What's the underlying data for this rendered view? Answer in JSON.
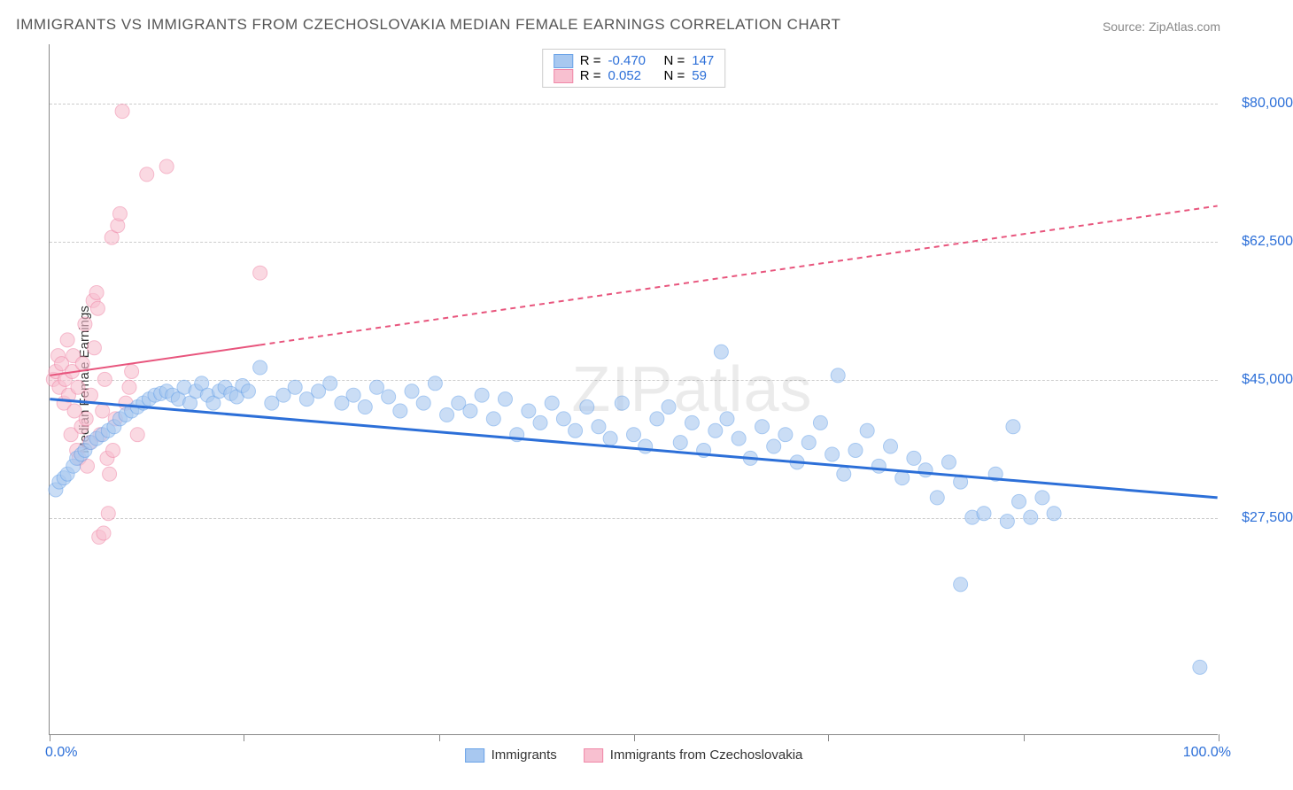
{
  "title": "IMMIGRANTS VS IMMIGRANTS FROM CZECHOSLOVAKIA MEDIAN FEMALE EARNINGS CORRELATION CHART",
  "source": "Source: ZipAtlas.com",
  "ylabel": "Median Female Earnings",
  "watermark": "ZIPatlas",
  "chart": {
    "type": "scatter",
    "xlim": [
      0,
      100
    ],
    "ylim": [
      0,
      87500
    ],
    "xaxis": {
      "min_label": "0.0%",
      "max_label": "100.0%",
      "tick_positions_pct": [
        0,
        16.6,
        33.3,
        50,
        66.6,
        83.3,
        100
      ]
    },
    "yticks": [
      {
        "value": 27500,
        "label": "$27,500"
      },
      {
        "value": 45000,
        "label": "$45,000"
      },
      {
        "value": 62500,
        "label": "$62,500"
      },
      {
        "value": 80000,
        "label": "$80,000"
      }
    ],
    "grid_color": "#cccccc",
    "background_color": "#ffffff",
    "marker_radius": 8,
    "marker_opacity": 0.45,
    "series": [
      {
        "name": "Immigrants",
        "color_fill": "#a8c8f0",
        "color_stroke": "#6aa3e8",
        "line_color": "#2c6fd8",
        "line_width": 3,
        "R": "-0.470",
        "N": "147",
        "trend": {
          "x1": 0,
          "y1": 42500,
          "x2": 100,
          "y2": 30000,
          "dashed_from_x": null
        },
        "points": [
          [
            0.5,
            31000
          ],
          [
            0.8,
            32000
          ],
          [
            1.2,
            32500
          ],
          [
            1.5,
            33000
          ],
          [
            2.0,
            34000
          ],
          [
            2.3,
            35000
          ],
          [
            2.7,
            35500
          ],
          [
            3.0,
            36000
          ],
          [
            3.5,
            37000
          ],
          [
            4.0,
            37500
          ],
          [
            4.5,
            38000
          ],
          [
            5.0,
            38500
          ],
          [
            5.5,
            39000
          ],
          [
            6.0,
            40000
          ],
          [
            6.5,
            40500
          ],
          [
            7.0,
            41000
          ],
          [
            7.5,
            41500
          ],
          [
            8.0,
            42000
          ],
          [
            8.5,
            42500
          ],
          [
            9.0,
            43000
          ],
          [
            9.5,
            43200
          ],
          [
            10.0,
            43500
          ],
          [
            10.5,
            43000
          ],
          [
            11.0,
            42500
          ],
          [
            11.5,
            44000
          ],
          [
            12.0,
            42000
          ],
          [
            12.5,
            43500
          ],
          [
            13.0,
            44500
          ],
          [
            13.5,
            43000
          ],
          [
            14.0,
            42000
          ],
          [
            14.5,
            43500
          ],
          [
            15.0,
            44000
          ],
          [
            15.5,
            43200
          ],
          [
            16.0,
            42800
          ],
          [
            16.5,
            44200
          ],
          [
            17.0,
            43500
          ],
          [
            18.0,
            46500
          ],
          [
            19.0,
            42000
          ],
          [
            20.0,
            43000
          ],
          [
            21.0,
            44000
          ],
          [
            22.0,
            42500
          ],
          [
            23.0,
            43500
          ],
          [
            24.0,
            44500
          ],
          [
            25.0,
            42000
          ],
          [
            26.0,
            43000
          ],
          [
            27.0,
            41500
          ],
          [
            28.0,
            44000
          ],
          [
            29.0,
            42800
          ],
          [
            30.0,
            41000
          ],
          [
            31.0,
            43500
          ],
          [
            32.0,
            42000
          ],
          [
            33.0,
            44500
          ],
          [
            34.0,
            40500
          ],
          [
            35.0,
            42000
          ],
          [
            36.0,
            41000
          ],
          [
            37.0,
            43000
          ],
          [
            38.0,
            40000
          ],
          [
            39.0,
            42500
          ],
          [
            40.0,
            38000
          ],
          [
            41.0,
            41000
          ],
          [
            42.0,
            39500
          ],
          [
            43.0,
            42000
          ],
          [
            44.0,
            40000
          ],
          [
            45.0,
            38500
          ],
          [
            46.0,
            41500
          ],
          [
            47.0,
            39000
          ],
          [
            48.0,
            37500
          ],
          [
            49.0,
            42000
          ],
          [
            50.0,
            38000
          ],
          [
            51.0,
            36500
          ],
          [
            52.0,
            40000
          ],
          [
            53.0,
            41500
          ],
          [
            54.0,
            37000
          ],
          [
            55.0,
            39500
          ],
          [
            56.0,
            36000
          ],
          [
            57.0,
            38500
          ],
          [
            57.5,
            48500
          ],
          [
            58.0,
            40000
          ],
          [
            59.0,
            37500
          ],
          [
            60.0,
            35000
          ],
          [
            61.0,
            39000
          ],
          [
            62.0,
            36500
          ],
          [
            63.0,
            38000
          ],
          [
            64.0,
            34500
          ],
          [
            65.0,
            37000
          ],
          [
            66.0,
            39500
          ],
          [
            67.0,
            35500
          ],
          [
            67.5,
            45500
          ],
          [
            68.0,
            33000
          ],
          [
            69.0,
            36000
          ],
          [
            70.0,
            38500
          ],
          [
            71.0,
            34000
          ],
          [
            72.0,
            36500
          ],
          [
            73.0,
            32500
          ],
          [
            74.0,
            35000
          ],
          [
            75.0,
            33500
          ],
          [
            76.0,
            30000
          ],
          [
            77.0,
            34500
          ],
          [
            78.0,
            32000
          ],
          [
            79.0,
            27500
          ],
          [
            80.0,
            28000
          ],
          [
            81.0,
            33000
          ],
          [
            82.0,
            27000
          ],
          [
            82.5,
            39000
          ],
          [
            83.0,
            29500
          ],
          [
            84.0,
            27500
          ],
          [
            85.0,
            30000
          ],
          [
            86.0,
            28000
          ],
          [
            78.0,
            19000
          ],
          [
            98.5,
            8500
          ]
        ]
      },
      {
        "name": "Immigrants from Czechoslovakia",
        "color_fill": "#f8c0d0",
        "color_stroke": "#f088a8",
        "line_color": "#e8557d",
        "line_width": 2,
        "R": "0.052",
        "N": "59",
        "trend": {
          "x1": 0,
          "y1": 45500,
          "x2": 100,
          "y2": 67000,
          "dashed_from_x": 18
        },
        "points": [
          [
            0.3,
            45000
          ],
          [
            0.5,
            46000
          ],
          [
            0.7,
            48000
          ],
          [
            0.8,
            44000
          ],
          [
            1.0,
            47000
          ],
          [
            1.2,
            42000
          ],
          [
            1.3,
            45000
          ],
          [
            1.5,
            50000
          ],
          [
            1.6,
            43000
          ],
          [
            1.8,
            38000
          ],
          [
            1.9,
            46000
          ],
          [
            2.0,
            48000
          ],
          [
            2.1,
            41000
          ],
          [
            2.3,
            36000
          ],
          [
            2.4,
            44000
          ],
          [
            2.5,
            35000
          ],
          [
            2.7,
            39000
          ],
          [
            2.8,
            47000
          ],
          [
            3.0,
            52000
          ],
          [
            3.1,
            40000
          ],
          [
            3.2,
            34000
          ],
          [
            3.4,
            37000
          ],
          [
            3.5,
            43000
          ],
          [
            3.7,
            55000
          ],
          [
            3.8,
            49000
          ],
          [
            4.0,
            56000
          ],
          [
            4.1,
            54000
          ],
          [
            4.3,
            38000
          ],
          [
            4.5,
            41000
          ],
          [
            4.7,
            45000
          ],
          [
            4.9,
            35000
          ],
          [
            5.1,
            33000
          ],
          [
            5.3,
            63000
          ],
          [
            5.4,
            36000
          ],
          [
            5.6,
            40000
          ],
          [
            5.8,
            64500
          ],
          [
            6.0,
            66000
          ],
          [
            6.2,
            79000
          ],
          [
            6.5,
            42000
          ],
          [
            6.8,
            44000
          ],
          [
            7.0,
            46000
          ],
          [
            7.5,
            38000
          ],
          [
            8.3,
            71000
          ],
          [
            4.2,
            25000
          ],
          [
            4.6,
            25500
          ],
          [
            5.0,
            28000
          ],
          [
            10.0,
            72000
          ],
          [
            18.0,
            58500
          ]
        ]
      }
    ],
    "legend_top": {
      "value_color": "#2c6fd8",
      "rows": [
        {
          "swatch_fill": "#a8c8f0",
          "swatch_stroke": "#6aa3e8",
          "R": "-0.470",
          "N": "147"
        },
        {
          "swatch_fill": "#f8c0d0",
          "swatch_stroke": "#f088a8",
          "R": "0.052",
          "N": "59"
        }
      ]
    },
    "legend_bottom": [
      {
        "swatch_fill": "#a8c8f0",
        "swatch_stroke": "#6aa3e8",
        "label": "Immigrants"
      },
      {
        "swatch_fill": "#f8c0d0",
        "swatch_stroke": "#f088a8",
        "label": "Immigrants from Czechoslovakia"
      }
    ]
  }
}
